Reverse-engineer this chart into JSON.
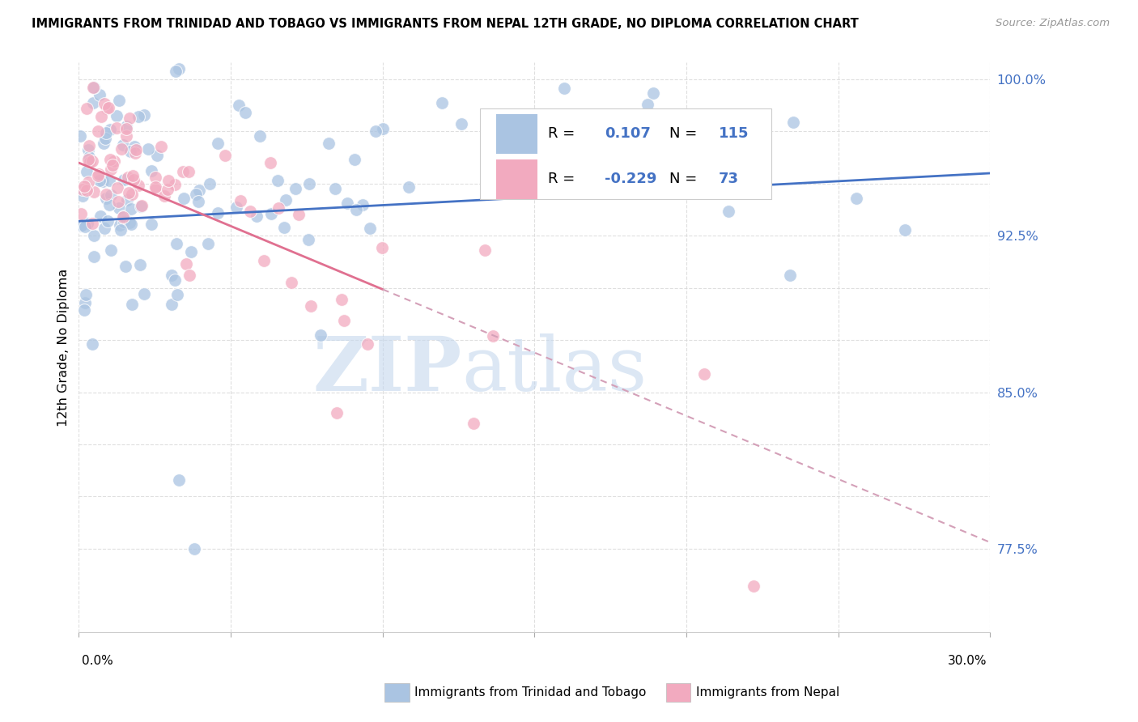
{
  "title": "IMMIGRANTS FROM TRINIDAD AND TOBAGO VS IMMIGRANTS FROM NEPAL 12TH GRADE, NO DIPLOMA CORRELATION CHART",
  "source": "Source: ZipAtlas.com",
  "ylabel": "12th Grade, No Diploma",
  "xlim": [
    0.0,
    0.3
  ],
  "ylim": [
    0.735,
    1.008
  ],
  "y_tick_vals": [
    0.775,
    0.8,
    0.825,
    0.85,
    0.875,
    0.9,
    0.925,
    0.95,
    0.975,
    1.0
  ],
  "y_tick_labels": [
    "77.5%",
    "",
    "",
    "85.0%",
    "",
    "",
    "92.5%",
    "",
    "",
    "100.0%"
  ],
  "blue_color": "#aac4e2",
  "pink_color": "#f2aabf",
  "blue_line_color": "#4472c4",
  "pink_line_color": "#e07090",
  "legend_text_color": "#4472c4",
  "watermark_color": "#c5d8ee"
}
